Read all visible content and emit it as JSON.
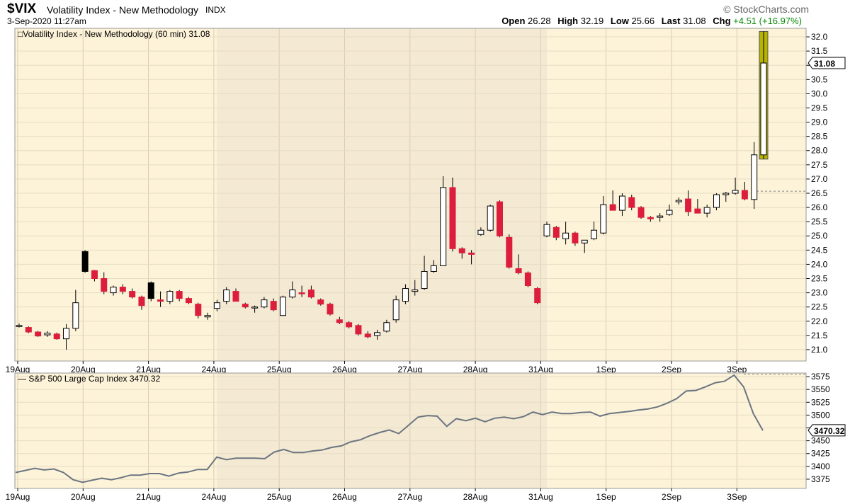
{
  "header": {
    "symbol": "$VIX",
    "name": "Volatility Index - New Methodology",
    "exchange": "INDX",
    "datetime": "3-Sep-2020 11:27am",
    "logo": "© StockCharts.com",
    "stats": [
      {
        "label": "Open",
        "value": "26.28"
      },
      {
        "label": "High",
        "value": "32.19"
      },
      {
        "label": "Low",
        "value": "25.66"
      },
      {
        "label": "Last",
        "value": "31.08"
      },
      {
        "label": "Chg",
        "value": "+4.51 (+16.97%)"
      }
    ],
    "chg_color": "#0a8a0a"
  },
  "colors": {
    "up_fill": "#ffffff",
    "down_fill": "#dc1e3c",
    "black_fill": "#000000",
    "highlight": "#b5b200",
    "panel_bg": "#fdf3d9",
    "panel_bg_alt": "#f4e9d3",
    "line": "#6b7580"
  },
  "chart_data": [
    {
      "type": "candlestick",
      "title": "Volatility Index - New Methodology (60 min) 31.08",
      "last_label": "31.08",
      "ylim": [
        20.6,
        32.3
      ],
      "yticks": [
        21.0,
        21.5,
        22.0,
        22.5,
        23.0,
        23.5,
        24.0,
        24.5,
        25.0,
        25.5,
        26.0,
        26.5,
        27.0,
        27.5,
        28.0,
        28.5,
        29.0,
        29.5,
        30.0,
        30.5,
        31.0,
        31.5,
        32.0
      ],
      "xlabels": [
        "19Aug",
        "20Aug",
        "21Aug",
        "24Aug",
        "25Aug",
        "26Aug",
        "27Aug",
        "28Aug",
        "31Aug",
        "1Sep",
        "2Sep",
        "3Sep"
      ],
      "reference_line": 26.57,
      "candles": [
        {
          "o": 21.85,
          "h": 21.92,
          "l": 21.78,
          "c": 21.85,
          "s": "up"
        },
        {
          "o": 21.78,
          "h": 21.82,
          "l": 21.58,
          "c": 21.62,
          "s": "down"
        },
        {
          "o": 21.62,
          "h": 21.66,
          "l": 21.45,
          "c": 21.48,
          "s": "down"
        },
        {
          "o": 21.52,
          "h": 21.65,
          "l": 21.45,
          "c": 21.58,
          "s": "up"
        },
        {
          "o": 21.55,
          "h": 21.6,
          "l": 21.35,
          "c": 21.38,
          "s": "down"
        },
        {
          "o": 21.38,
          "h": 21.9,
          "l": 21.0,
          "c": 21.75,
          "s": "up"
        },
        {
          "o": 21.75,
          "h": 23.1,
          "l": 21.65,
          "c": 22.65,
          "s": "up"
        },
        {
          "o": 23.75,
          "h": 24.5,
          "l": 23.7,
          "c": 24.45,
          "s": "black"
        },
        {
          "o": 23.78,
          "h": 23.8,
          "l": 23.4,
          "c": 23.5,
          "s": "down"
        },
        {
          "o": 23.5,
          "h": 23.72,
          "l": 22.95,
          "c": 23.05,
          "s": "down"
        },
        {
          "o": 23.0,
          "h": 23.25,
          "l": 22.9,
          "c": 23.2,
          "s": "up"
        },
        {
          "o": 23.2,
          "h": 23.3,
          "l": 22.95,
          "c": 23.05,
          "s": "down"
        },
        {
          "o": 23.05,
          "h": 23.15,
          "l": 22.8,
          "c": 22.85,
          "s": "down"
        },
        {
          "o": 22.85,
          "h": 22.9,
          "l": 22.4,
          "c": 22.55,
          "s": "down"
        },
        {
          "o": 22.8,
          "h": 23.4,
          "l": 22.7,
          "c": 23.35,
          "s": "black"
        },
        {
          "o": 22.75,
          "h": 23.05,
          "l": 22.5,
          "c": 22.7,
          "s": "down"
        },
        {
          "o": 22.7,
          "h": 23.1,
          "l": 22.6,
          "c": 23.05,
          "s": "up"
        },
        {
          "o": 23.05,
          "h": 23.1,
          "l": 22.7,
          "c": 22.8,
          "s": "down"
        },
        {
          "o": 22.8,
          "h": 22.85,
          "l": 22.6,
          "c": 22.65,
          "s": "down"
        },
        {
          "o": 22.6,
          "h": 22.65,
          "l": 22.1,
          "c": 22.2,
          "s": "down"
        },
        {
          "o": 22.15,
          "h": 22.3,
          "l": 22.05,
          "c": 22.2,
          "s": "up"
        },
        {
          "o": 22.45,
          "h": 22.75,
          "l": 22.35,
          "c": 22.65,
          "s": "up"
        },
        {
          "o": 22.7,
          "h": 23.2,
          "l": 22.6,
          "c": 23.1,
          "s": "up"
        },
        {
          "o": 23.05,
          "h": 23.15,
          "l": 22.75,
          "c": 22.7,
          "s": "down"
        },
        {
          "o": 22.6,
          "h": 22.65,
          "l": 22.45,
          "c": 22.5,
          "s": "down"
        },
        {
          "o": 22.5,
          "h": 22.55,
          "l": 22.3,
          "c": 22.5,
          "s": "up"
        },
        {
          "o": 22.5,
          "h": 22.85,
          "l": 22.45,
          "c": 22.75,
          "s": "up"
        },
        {
          "o": 22.7,
          "h": 22.8,
          "l": 22.35,
          "c": 22.4,
          "s": "down"
        },
        {
          "o": 22.2,
          "h": 22.9,
          "l": 22.2,
          "c": 22.85,
          "s": "up"
        },
        {
          "o": 22.85,
          "h": 23.4,
          "l": 22.8,
          "c": 23.1,
          "s": "up"
        },
        {
          "o": 23.0,
          "h": 23.25,
          "l": 22.85,
          "c": 23.0,
          "s": "down"
        },
        {
          "o": 23.1,
          "h": 23.25,
          "l": 22.8,
          "c": 22.85,
          "s": "down"
        },
        {
          "o": 22.75,
          "h": 22.8,
          "l": 22.55,
          "c": 22.6,
          "s": "down"
        },
        {
          "o": 22.6,
          "h": 22.65,
          "l": 22.2,
          "c": 22.25,
          "s": "down"
        },
        {
          "o": 22.05,
          "h": 22.15,
          "l": 21.9,
          "c": 21.95,
          "s": "down"
        },
        {
          "o": 21.95,
          "h": 22.0,
          "l": 21.75,
          "c": 21.8,
          "s": "down"
        },
        {
          "o": 21.85,
          "h": 21.9,
          "l": 21.5,
          "c": 21.55,
          "s": "down"
        },
        {
          "o": 21.55,
          "h": 21.65,
          "l": 21.4,
          "c": 21.45,
          "s": "down"
        },
        {
          "o": 21.5,
          "h": 21.7,
          "l": 21.35,
          "c": 21.6,
          "s": "up"
        },
        {
          "o": 21.65,
          "h": 22.05,
          "l": 21.6,
          "c": 21.95,
          "s": "up"
        },
        {
          "o": 22.05,
          "h": 22.9,
          "l": 21.95,
          "c": 22.75,
          "s": "up"
        },
        {
          "o": 22.7,
          "h": 23.3,
          "l": 22.6,
          "c": 23.15,
          "s": "up"
        },
        {
          "o": 23.05,
          "h": 23.45,
          "l": 22.9,
          "c": 23.1,
          "s": "up"
        },
        {
          "o": 23.15,
          "h": 24.3,
          "l": 23.1,
          "c": 23.75,
          "s": "up"
        },
        {
          "o": 23.75,
          "h": 24.15,
          "l": 23.7,
          "c": 23.95,
          "s": "up"
        },
        {
          "o": 23.95,
          "h": 27.1,
          "l": 23.95,
          "c": 26.7,
          "s": "up"
        },
        {
          "o": 26.7,
          "h": 27.05,
          "l": 24.45,
          "c": 24.55,
          "s": "down"
        },
        {
          "o": 24.55,
          "h": 24.6,
          "l": 24.2,
          "c": 24.4,
          "s": "down"
        },
        {
          "o": 24.4,
          "h": 24.5,
          "l": 24.0,
          "c": 24.35,
          "s": "down"
        },
        {
          "o": 25.05,
          "h": 25.3,
          "l": 25.0,
          "c": 25.2,
          "s": "up"
        },
        {
          "o": 25.2,
          "h": 26.1,
          "l": 25.15,
          "c": 26.05,
          "s": "up"
        },
        {
          "o": 26.2,
          "h": 26.25,
          "l": 24.95,
          "c": 25.0,
          "s": "down"
        },
        {
          "o": 24.95,
          "h": 25.05,
          "l": 23.85,
          "c": 23.9,
          "s": "down"
        },
        {
          "o": 23.85,
          "h": 24.35,
          "l": 23.65,
          "c": 23.7,
          "s": "down"
        },
        {
          "o": 23.7,
          "h": 23.75,
          "l": 23.2,
          "c": 23.25,
          "s": "down"
        },
        {
          "o": 23.15,
          "h": 23.2,
          "l": 22.6,
          "c": 22.65,
          "s": "down"
        },
        {
          "o": 25.0,
          "h": 25.5,
          "l": 24.95,
          "c": 25.4,
          "s": "up"
        },
        {
          "o": 25.3,
          "h": 25.35,
          "l": 24.85,
          "c": 24.95,
          "s": "down"
        },
        {
          "o": 24.9,
          "h": 25.5,
          "l": 24.7,
          "c": 25.1,
          "s": "up"
        },
        {
          "o": 25.1,
          "h": 25.15,
          "l": 24.65,
          "c": 24.75,
          "s": "down"
        },
        {
          "o": 24.75,
          "h": 24.85,
          "l": 24.4,
          "c": 24.85,
          "s": "up"
        },
        {
          "o": 24.9,
          "h": 25.5,
          "l": 24.85,
          "c": 25.2,
          "s": "up"
        },
        {
          "o": 25.1,
          "h": 26.4,
          "l": 25.05,
          "c": 26.1,
          "s": "up"
        },
        {
          "o": 26.1,
          "h": 26.6,
          "l": 25.9,
          "c": 25.9,
          "s": "down"
        },
        {
          "o": 25.9,
          "h": 26.5,
          "l": 25.7,
          "c": 26.4,
          "s": "up"
        },
        {
          "o": 26.35,
          "h": 26.45,
          "l": 25.9,
          "c": 26.0,
          "s": "down"
        },
        {
          "o": 26.0,
          "h": 26.05,
          "l": 25.6,
          "c": 25.65,
          "s": "down"
        },
        {
          "o": 25.65,
          "h": 25.7,
          "l": 25.5,
          "c": 25.6,
          "s": "down"
        },
        {
          "o": 25.65,
          "h": 25.8,
          "l": 25.5,
          "c": 25.7,
          "s": "up"
        },
        {
          "o": 25.75,
          "h": 26.1,
          "l": 25.7,
          "c": 25.9,
          "s": "up"
        },
        {
          "o": 26.2,
          "h": 26.35,
          "l": 26.1,
          "c": 26.25,
          "s": "up"
        },
        {
          "o": 26.3,
          "h": 26.6,
          "l": 25.7,
          "c": 25.85,
          "s": "down"
        },
        {
          "o": 25.95,
          "h": 26.3,
          "l": 25.8,
          "c": 25.8,
          "s": "down"
        },
        {
          "o": 25.8,
          "h": 26.1,
          "l": 25.65,
          "c": 26.0,
          "s": "up"
        },
        {
          "o": 26.0,
          "h": 26.5,
          "l": 25.9,
          "c": 26.45,
          "s": "up"
        },
        {
          "o": 26.45,
          "h": 26.55,
          "l": 26.2,
          "c": 26.5,
          "s": "up"
        },
        {
          "o": 26.5,
          "h": 27.05,
          "l": 26.45,
          "c": 26.6,
          "s": "up"
        },
        {
          "o": 26.6,
          "h": 26.9,
          "l": 26.25,
          "c": 26.3,
          "s": "down"
        },
        {
          "o": 26.28,
          "h": 28.3,
          "l": 25.95,
          "c": 27.85,
          "s": "up"
        },
        {
          "o": 27.85,
          "h": 32.19,
          "l": 27.7,
          "c": 31.08,
          "s": "highlight"
        }
      ]
    },
    {
      "type": "line",
      "title": "S&P 500 Large Cap Index 3470.32",
      "last_label": "3470.32",
      "ylim": [
        3357,
        3582
      ],
      "yticks": [
        3375,
        3400,
        3425,
        3450,
        3475,
        3500,
        3525,
        3550,
        3575
      ],
      "xlabels": [
        "19Aug",
        "20Aug",
        "21Aug",
        "24Aug",
        "25Aug",
        "26Aug",
        "27Aug",
        "28Aug",
        "31Aug",
        "1Sep",
        "2Sep",
        "3Sep"
      ],
      "reference_line": 3580,
      "values": [
        3388,
        3392,
        3396,
        3393,
        3395,
        3388,
        3374,
        3369,
        3373,
        3377,
        3374,
        3378,
        3383,
        3383,
        3386,
        3386,
        3381,
        3387,
        3389,
        3394,
        3394,
        3418,
        3413,
        3416,
        3416,
        3416,
        3415,
        3428,
        3433,
        3427,
        3427,
        3430,
        3432,
        3437,
        3440,
        3448,
        3452,
        3460,
        3466,
        3471,
        3464,
        3480,
        3496,
        3499,
        3498,
        3478,
        3493,
        3489,
        3494,
        3487,
        3494,
        3496,
        3493,
        3497,
        3506,
        3501,
        3506,
        3503,
        3503,
        3505,
        3506,
        3498,
        3503,
        3505,
        3507,
        3510,
        3512,
        3516,
        3523,
        3532,
        3547,
        3548,
        3555,
        3563,
        3566,
        3578,
        3555,
        3503,
        3470
      ]
    }
  ]
}
